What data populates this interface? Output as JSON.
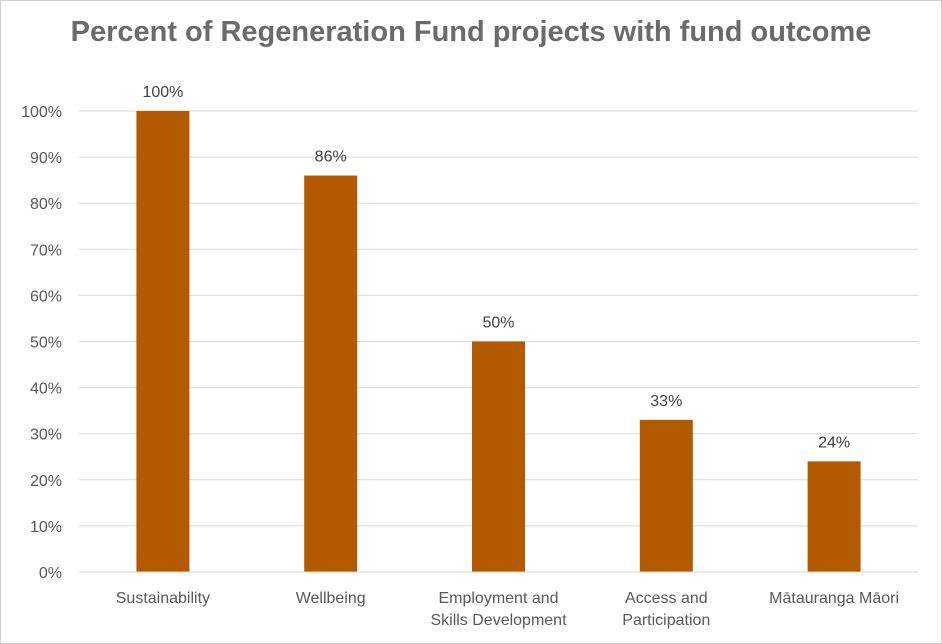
{
  "chart_data": {
    "type": "bar",
    "title": "Percent of Regeneration Fund projects with fund outcome",
    "categories": [
      [
        "Sustainability"
      ],
      [
        "Wellbeing"
      ],
      [
        "Employment and",
        "Skills Development"
      ],
      [
        "Access and",
        "Participation"
      ],
      [
        "Mātauranga Māori"
      ]
    ],
    "values": [
      100,
      86,
      50,
      33,
      24
    ],
    "data_labels": [
      "100%",
      "86%",
      "50%",
      "33%",
      "24%"
    ],
    "yticks": [
      "0%",
      "10%",
      "20%",
      "30%",
      "40%",
      "50%",
      "60%",
      "70%",
      "80%",
      "90%",
      "100%"
    ],
    "ylim": [
      0,
      100
    ],
    "xlabel": "",
    "ylabel": "",
    "grid": true,
    "bar_color": "#b35900",
    "grid_color": "#d9d9d9"
  }
}
